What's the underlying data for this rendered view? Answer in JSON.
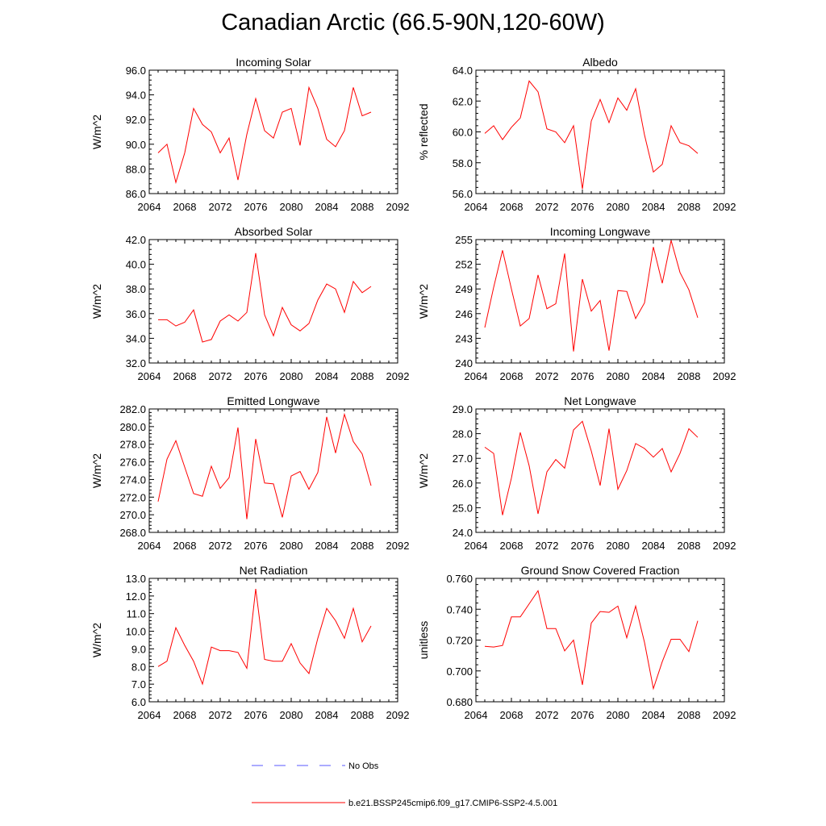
{
  "figure": {
    "title": "Canadian Arctic (66.5-90N,120-60W)",
    "line_color": "#ff0000",
    "obs_color": "#5a5aff"
  },
  "legend": {
    "obs_label": "No Obs",
    "model_label": "b.e21.BSSP245cmip6.f09_g17.CMIP6-SSP2-4.5.001"
  },
  "chart_data": [
    {
      "type": "line",
      "title": "Incoming Solar",
      "ylabel": "W/m^2",
      "xlim": [
        2064,
        2092
      ],
      "ylim": [
        86,
        96
      ],
      "xticks": [
        2064,
        2068,
        2072,
        2076,
        2080,
        2084,
        2088,
        2092
      ],
      "yticks": [
        86,
        88,
        90,
        92,
        94,
        96
      ],
      "ytick_decimals": 1,
      "grid": false,
      "series": [
        {
          "x": [
            2065,
            2066,
            2067,
            2068,
            2069,
            2070,
            2071,
            2072,
            2073,
            2074,
            2075,
            2076,
            2077,
            2078,
            2079,
            2080,
            2081,
            2082,
            2083,
            2084,
            2085,
            2086,
            2087,
            2088,
            2089
          ],
          "y": [
            89.3,
            90.0,
            86.9,
            89.3,
            92.9,
            91.6,
            91.0,
            89.3,
            90.5,
            87.1,
            90.8,
            93.7,
            91.1,
            90.5,
            92.6,
            92.9,
            89.9,
            94.6,
            92.9,
            90.4,
            89.8,
            91.1,
            94.6,
            92.3,
            92.6
          ]
        }
      ]
    },
    {
      "type": "line",
      "title": "Albedo",
      "ylabel": "% reflected",
      "xlim": [
        2064,
        2092
      ],
      "ylim": [
        56,
        64
      ],
      "xticks": [
        2064,
        2068,
        2072,
        2076,
        2080,
        2084,
        2088,
        2092
      ],
      "yticks": [
        56,
        58,
        60,
        62,
        64
      ],
      "ytick_decimals": 1,
      "grid": false,
      "series": [
        {
          "x": [
            2065,
            2066,
            2067,
            2068,
            2069,
            2070,
            2071,
            2072,
            2073,
            2074,
            2075,
            2076,
            2077,
            2078,
            2079,
            2080,
            2081,
            2082,
            2083,
            2084,
            2085,
            2086,
            2087,
            2088,
            2089
          ],
          "y": [
            59.9,
            60.4,
            59.5,
            60.3,
            60.9,
            63.3,
            62.6,
            60.2,
            60.0,
            59.3,
            60.4,
            56.3,
            60.7,
            62.1,
            60.6,
            62.2,
            61.4,
            62.8,
            59.8,
            57.4,
            57.9,
            60.4,
            59.3,
            59.1,
            58.6
          ]
        }
      ]
    },
    {
      "type": "line",
      "title": "Absorbed Solar",
      "ylabel": "W/m^2",
      "xlim": [
        2064,
        2092
      ],
      "ylim": [
        32,
        42
      ],
      "xticks": [
        2064,
        2068,
        2072,
        2076,
        2080,
        2084,
        2088,
        2092
      ],
      "yticks": [
        32,
        34,
        36,
        38,
        40,
        42
      ],
      "ytick_decimals": 1,
      "grid": false,
      "series": [
        {
          "x": [
            2065,
            2066,
            2067,
            2068,
            2069,
            2070,
            2071,
            2072,
            2073,
            2074,
            2075,
            2076,
            2077,
            2078,
            2079,
            2080,
            2081,
            2082,
            2083,
            2084,
            2085,
            2086,
            2087,
            2088,
            2089
          ],
          "y": [
            35.5,
            35.5,
            35.0,
            35.3,
            36.3,
            33.7,
            33.9,
            35.4,
            35.9,
            35.4,
            36.1,
            40.9,
            35.9,
            34.2,
            36.5,
            35.1,
            34.6,
            35.2,
            37.1,
            38.4,
            38.0,
            36.1,
            38.6,
            37.7,
            38.2
          ]
        }
      ]
    },
    {
      "type": "line",
      "title": "Incoming Longwave",
      "ylabel": "W/m^2",
      "xlim": [
        2064,
        2092
      ],
      "ylim": [
        240,
        255
      ],
      "xticks": [
        2064,
        2068,
        2072,
        2076,
        2080,
        2084,
        2088,
        2092
      ],
      "yticks": [
        240,
        243,
        246,
        249,
        252,
        255
      ],
      "ytick_decimals": 0,
      "grid": false,
      "series": [
        {
          "x": [
            2065,
            2066,
            2067,
            2068,
            2069,
            2070,
            2071,
            2072,
            2073,
            2074,
            2075,
            2076,
            2077,
            2078,
            2079,
            2080,
            2081,
            2082,
            2083,
            2084,
            2085,
            2086,
            2087,
            2088,
            2089
          ],
          "y": [
            244.3,
            249.2,
            253.7,
            249.0,
            244.5,
            245.4,
            250.7,
            246.6,
            247.2,
            253.3,
            241.4,
            250.2,
            246.3,
            247.6,
            241.5,
            248.8,
            248.7,
            245.4,
            247.3,
            254.1,
            249.7,
            254.9,
            251.0,
            248.9,
            245.5
          ]
        }
      ]
    },
    {
      "type": "line",
      "title": "Emitted Longwave",
      "ylabel": "W/m^2",
      "xlim": [
        2064,
        2092
      ],
      "ylim": [
        268,
        282
      ],
      "xticks": [
        2064,
        2068,
        2072,
        2076,
        2080,
        2084,
        2088,
        2092
      ],
      "yticks": [
        268,
        270,
        272,
        274,
        276,
        278,
        280,
        282
      ],
      "ytick_decimals": 1,
      "grid": false,
      "series": [
        {
          "x": [
            2065,
            2066,
            2067,
            2068,
            2069,
            2070,
            2071,
            2072,
            2073,
            2074,
            2075,
            2076,
            2077,
            2078,
            2079,
            2080,
            2081,
            2082,
            2083,
            2084,
            2085,
            2086,
            2087,
            2088,
            2089
          ],
          "y": [
            271.5,
            276.3,
            278.4,
            275.4,
            272.4,
            272.1,
            275.5,
            273.0,
            274.2,
            279.9,
            269.5,
            278.6,
            273.6,
            273.5,
            269.7,
            274.4,
            274.9,
            272.9,
            274.8,
            281.1,
            277.0,
            281.4,
            278.3,
            276.9,
            273.3
          ]
        }
      ]
    },
    {
      "type": "line",
      "title": "Net Longwave",
      "ylabel": "W/m^2",
      "xlim": [
        2064,
        2092
      ],
      "ylim": [
        24,
        29
      ],
      "xticks": [
        2064,
        2068,
        2072,
        2076,
        2080,
        2084,
        2088,
        2092
      ],
      "yticks": [
        24,
        25,
        26,
        27,
        28,
        29
      ],
      "ytick_decimals": 1,
      "grid": false,
      "series": [
        {
          "x": [
            2065,
            2066,
            2067,
            2068,
            2069,
            2070,
            2071,
            2072,
            2073,
            2074,
            2075,
            2076,
            2077,
            2078,
            2079,
            2080,
            2081,
            2082,
            2083,
            2084,
            2085,
            2086,
            2087,
            2088,
            2089
          ],
          "y": [
            27.45,
            27.2,
            24.7,
            26.2,
            28.05,
            26.7,
            24.75,
            26.45,
            26.95,
            26.6,
            28.15,
            28.5,
            27.3,
            25.9,
            28.2,
            25.75,
            26.5,
            27.6,
            27.4,
            27.05,
            27.4,
            26.45,
            27.2,
            28.2,
            27.85
          ]
        }
      ]
    },
    {
      "type": "line",
      "title": "Net Radiation",
      "ylabel": "W/m^2",
      "xlim": [
        2064,
        2092
      ],
      "ylim": [
        6,
        13
      ],
      "xticks": [
        2064,
        2068,
        2072,
        2076,
        2080,
        2084,
        2088,
        2092
      ],
      "yticks": [
        6,
        7,
        8,
        9,
        10,
        11,
        12,
        13
      ],
      "ytick_decimals": 1,
      "grid": false,
      "series": [
        {
          "x": [
            2065,
            2066,
            2067,
            2068,
            2069,
            2070,
            2071,
            2072,
            2073,
            2074,
            2075,
            2076,
            2077,
            2078,
            2079,
            2080,
            2081,
            2082,
            2083,
            2084,
            2085,
            2086,
            2087,
            2088,
            2089
          ],
          "y": [
            8.0,
            8.3,
            10.2,
            9.2,
            8.3,
            7.0,
            9.1,
            8.9,
            8.9,
            8.8,
            7.9,
            12.4,
            8.4,
            8.3,
            8.3,
            9.3,
            8.2,
            7.6,
            9.6,
            11.3,
            10.6,
            9.6,
            11.3,
            9.4,
            10.3
          ]
        }
      ]
    },
    {
      "type": "line",
      "title": "Ground Snow Covered Fraction",
      "ylabel": "unitless",
      "xlim": [
        2064,
        2092
      ],
      "ylim": [
        0.68,
        0.76
      ],
      "xticks": [
        2064,
        2068,
        2072,
        2076,
        2080,
        2084,
        2088,
        2092
      ],
      "yticks": [
        0.68,
        0.7,
        0.72,
        0.74,
        0.76
      ],
      "ytick_decimals": 3,
      "grid": false,
      "series": [
        {
          "x": [
            2065,
            2066,
            2067,
            2068,
            2069,
            2070,
            2071,
            2072,
            2073,
            2074,
            2075,
            2076,
            2077,
            2078,
            2079,
            2080,
            2081,
            2082,
            2083,
            2084,
            2085,
            2086,
            2087,
            2088,
            2089
          ],
          "y": [
            0.716,
            0.7155,
            0.7165,
            0.735,
            0.735,
            0.7435,
            0.752,
            0.7275,
            0.7275,
            0.713,
            0.72,
            0.691,
            0.731,
            0.7385,
            0.738,
            0.742,
            0.7215,
            0.742,
            0.7185,
            0.6885,
            0.706,
            0.7205,
            0.7205,
            0.7125,
            0.7325
          ]
        }
      ]
    }
  ]
}
